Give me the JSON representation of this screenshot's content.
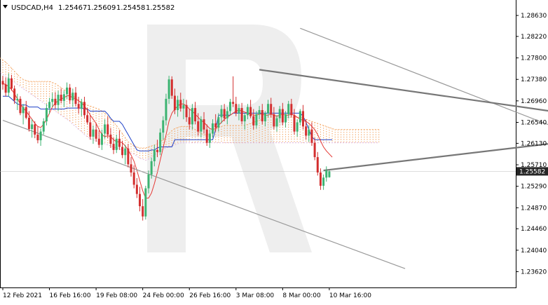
{
  "header": {
    "symbol_timeframe": "USDCAD,H4",
    "open": "1.25467",
    "high": "1.25609",
    "low": "1.25458",
    "close": "1.25582"
  },
  "price_badge": "1.25582",
  "colors": {
    "bull": "#3cb371",
    "bear": "#d32f2f",
    "tenkan": "#e53935",
    "kijun": "#1e40c8",
    "cloud": "#f4a460",
    "cloud_alt": "#d8a8d8",
    "trend": "#999999",
    "triangle": "#777777",
    "arrow": "#5a6a78",
    "badge_bg": "#262626",
    "watermark": "#eeeeee"
  },
  "chart_data": {
    "type": "candlestick",
    "title": "USDCAD,H4",
    "y_ticks": [
      "1.28630",
      "1.28220",
      "1.27800",
      "1.27380",
      "1.26960",
      "1.26540",
      "1.26130",
      "1.25710",
      "1.25290",
      "1.24870",
      "1.24460",
      "1.24040",
      "1.23620"
    ],
    "ylim": [
      1.2338,
      1.2885
    ],
    "x_ticks": [
      "12 Feb 2021",
      "16 Feb 16:00",
      "19 Feb 08:00",
      "24 Feb 00:00",
      "26 Feb 16:00",
      "3 Mar 08:00",
      "8 Mar 00:00",
      "10 Mar 16:00"
    ],
    "x_tick_bars": [
      0,
      16,
      32,
      48,
      64,
      80,
      96,
      112
    ],
    "ohlc": [
      [
        1.2735,
        1.2745,
        1.2718,
        1.2728
      ],
      [
        1.2728,
        1.2742,
        1.2705,
        1.2712
      ],
      [
        1.2712,
        1.275,
        1.2704,
        1.274
      ],
      [
        1.274,
        1.2747,
        1.2716,
        1.272
      ],
      [
        1.272,
        1.2726,
        1.269,
        1.2697
      ],
      [
        1.2697,
        1.271,
        1.2678,
        1.27
      ],
      [
        1.27,
        1.2705,
        1.2668,
        1.2672
      ],
      [
        1.2672,
        1.269,
        1.265,
        1.2684
      ],
      [
        1.2684,
        1.2696,
        1.266,
        1.2663
      ],
      [
        1.2663,
        1.2676,
        1.2636,
        1.2641
      ],
      [
        1.2641,
        1.266,
        1.2624,
        1.265
      ],
      [
        1.265,
        1.2656,
        1.2623,
        1.263
      ],
      [
        1.263,
        1.2646,
        1.2613,
        1.2619
      ],
      [
        1.2619,
        1.2642,
        1.2608,
        1.2636
      ],
      [
        1.2636,
        1.2662,
        1.263,
        1.2656
      ],
      [
        1.2656,
        1.269,
        1.2648,
        1.2682
      ],
      [
        1.2682,
        1.2702,
        1.267,
        1.2694
      ],
      [
        1.2694,
        1.2712,
        1.2684,
        1.27
      ],
      [
        1.27,
        1.2713,
        1.2681,
        1.2688
      ],
      [
        1.2688,
        1.2716,
        1.2676,
        1.2708
      ],
      [
        1.2708,
        1.272,
        1.2691,
        1.2696
      ],
      [
        1.2696,
        1.2716,
        1.2684,
        1.2709
      ],
      [
        1.2709,
        1.2732,
        1.27,
        1.2722
      ],
      [
        1.2722,
        1.2729,
        1.269,
        1.2697
      ],
      [
        1.2697,
        1.272,
        1.2684,
        1.2712
      ],
      [
        1.2712,
        1.2723,
        1.2685,
        1.269
      ],
      [
        1.269,
        1.2704,
        1.2671,
        1.2681
      ],
      [
        1.2681,
        1.27,
        1.2666,
        1.2694
      ],
      [
        1.2694,
        1.2704,
        1.2662,
        1.2668
      ],
      [
        1.2668,
        1.2682,
        1.265,
        1.2654
      ],
      [
        1.2654,
        1.2668,
        1.262,
        1.2626
      ],
      [
        1.2626,
        1.2648,
        1.2612,
        1.264
      ],
      [
        1.264,
        1.2652,
        1.2616,
        1.2622
      ],
      [
        1.2622,
        1.2638,
        1.2604,
        1.261
      ],
      [
        1.261,
        1.264,
        1.26,
        1.2632
      ],
      [
        1.2632,
        1.266,
        1.2622,
        1.265
      ],
      [
        1.265,
        1.2665,
        1.2623,
        1.263
      ],
      [
        1.263,
        1.2643,
        1.2604,
        1.2612
      ],
      [
        1.2612,
        1.2624,
        1.2592,
        1.26
      ],
      [
        1.26,
        1.263,
        1.2594,
        1.2622
      ],
      [
        1.2622,
        1.2638,
        1.26,
        1.2606
      ],
      [
        1.2606,
        1.2618,
        1.2584,
        1.259
      ],
      [
        1.259,
        1.261,
        1.2572,
        1.2603
      ],
      [
        1.2603,
        1.2612,
        1.2566,
        1.2572
      ],
      [
        1.2572,
        1.2586,
        1.2548,
        1.2556
      ],
      [
        1.2556,
        1.257,
        1.2525,
        1.2532
      ],
      [
        1.2532,
        1.2545,
        1.2506,
        1.2514
      ],
      [
        1.2514,
        1.2528,
        1.248,
        1.249
      ],
      [
        1.249,
        1.2504,
        1.2462,
        1.247
      ],
      [
        1.247,
        1.253,
        1.2464,
        1.2525
      ],
      [
        1.2525,
        1.256,
        1.2515,
        1.2552
      ],
      [
        1.2552,
        1.2585,
        1.2544,
        1.2578
      ],
      [
        1.2578,
        1.261,
        1.2568,
        1.26
      ],
      [
        1.26,
        1.262,
        1.2586,
        1.2596
      ],
      [
        1.2596,
        1.2642,
        1.259,
        1.2634
      ],
      [
        1.2634,
        1.2666,
        1.262,
        1.2658
      ],
      [
        1.2658,
        1.271,
        1.2648,
        1.27
      ],
      [
        1.27,
        1.2745,
        1.269,
        1.2738
      ],
      [
        1.2738,
        1.2744,
        1.27,
        1.2706
      ],
      [
        1.2706,
        1.272,
        1.267,
        1.2678
      ],
      [
        1.2678,
        1.2706,
        1.2665,
        1.2698
      ],
      [
        1.2698,
        1.2712,
        1.2675,
        1.2681
      ],
      [
        1.2681,
        1.27,
        1.266,
        1.2688
      ],
      [
        1.2688,
        1.2698,
        1.2655,
        1.2664
      ],
      [
        1.2664,
        1.268,
        1.264,
        1.265
      ],
      [
        1.265,
        1.269,
        1.264,
        1.2682
      ],
      [
        1.2682,
        1.2694,
        1.265,
        1.2656
      ],
      [
        1.2656,
        1.2672,
        1.2628,
        1.2636
      ],
      [
        1.2636,
        1.2666,
        1.2624,
        1.266
      ],
      [
        1.266,
        1.2674,
        1.2632,
        1.264
      ],
      [
        1.264,
        1.265,
        1.2608,
        1.2614
      ],
      [
        1.2614,
        1.264,
        1.2604,
        1.2632
      ],
      [
        1.2632,
        1.266,
        1.2624,
        1.2652
      ],
      [
        1.2652,
        1.267,
        1.2636,
        1.2644
      ],
      [
        1.2644,
        1.2672,
        1.2636,
        1.2664
      ],
      [
        1.2664,
        1.2688,
        1.2652,
        1.268
      ],
      [
        1.268,
        1.269,
        1.2656,
        1.2662
      ],
      [
        1.2662,
        1.2684,
        1.265,
        1.2676
      ],
      [
        1.2676,
        1.27,
        1.2668,
        1.2694
      ],
      [
        1.2694,
        1.2744,
        1.2684,
        1.269
      ],
      [
        1.269,
        1.2704,
        1.2666,
        1.2672
      ],
      [
        1.2672,
        1.269,
        1.2658,
        1.2682
      ],
      [
        1.2682,
        1.2692,
        1.265,
        1.2656
      ],
      [
        1.2656,
        1.2672,
        1.264,
        1.2668
      ],
      [
        1.2668,
        1.269,
        1.266,
        1.2684
      ],
      [
        1.2684,
        1.2698,
        1.2662,
        1.2666
      ],
      [
        1.2666,
        1.268,
        1.264,
        1.2648
      ],
      [
        1.2648,
        1.2676,
        1.2642,
        1.267
      ],
      [
        1.267,
        1.2686,
        1.266,
        1.2678
      ],
      [
        1.2678,
        1.269,
        1.265,
        1.2656
      ],
      [
        1.2656,
        1.2676,
        1.2646,
        1.2672
      ],
      [
        1.2672,
        1.2698,
        1.2664,
        1.269
      ],
      [
        1.269,
        1.2702,
        1.2664,
        1.267
      ],
      [
        1.267,
        1.2684,
        1.264,
        1.2646
      ],
      [
        1.2646,
        1.2668,
        1.2636,
        1.2662
      ],
      [
        1.2662,
        1.2686,
        1.2654,
        1.268
      ],
      [
        1.268,
        1.2692,
        1.2648,
        1.2654
      ],
      [
        1.2654,
        1.2676,
        1.2644,
        1.267
      ],
      [
        1.267,
        1.2696,
        1.2662,
        1.269
      ],
      [
        1.269,
        1.27,
        1.2664,
        1.2668
      ],
      [
        1.2668,
        1.268,
        1.263,
        1.2636
      ],
      [
        1.2636,
        1.266,
        1.2626,
        1.2654
      ],
      [
        1.2654,
        1.268,
        1.2648,
        1.2676
      ],
      [
        1.2676,
        1.2688,
        1.264,
        1.2646
      ],
      [
        1.2646,
        1.266,
        1.262,
        1.2628
      ],
      [
        1.2628,
        1.2648,
        1.2616,
        1.264
      ],
      [
        1.264,
        1.2654,
        1.2608,
        1.2614
      ],
      [
        1.2614,
        1.2624,
        1.258,
        1.2586
      ],
      [
        1.2586,
        1.2596,
        1.255,
        1.2556
      ],
      [
        1.2556,
        1.2564,
        1.2522,
        1.253
      ],
      [
        1.253,
        1.2552,
        1.2522,
        1.2546
      ],
      [
        1.2546,
        1.2568,
        1.2538,
        1.256
      ],
      [
        1.25467,
        1.25609,
        1.25458,
        1.25582
      ]
    ],
    "tenkan": [
      1.273,
      1.2728,
      1.2724,
      1.2718,
      1.271,
      1.27,
      1.269,
      1.2682,
      1.2676,
      1.2668,
      1.266,
      1.2652,
      1.2646,
      1.2644,
      1.265,
      1.266,
      1.2672,
      1.2684,
      1.2692,
      1.2696,
      1.27,
      1.2702,
      1.2706,
      1.2706,
      1.2702,
      1.27,
      1.2696,
      1.2692,
      1.2686,
      1.2678,
      1.2668,
      1.266,
      1.2652,
      1.264,
      1.263,
      1.2626,
      1.2628,
      1.2626,
      1.262,
      1.2616,
      1.2616,
      1.2614,
      1.2608,
      1.26,
      1.259,
      1.2578,
      1.256,
      1.254,
      1.252,
      1.2506,
      1.2506,
      1.2516,
      1.2534,
      1.2556,
      1.258,
      1.2604,
      1.263,
      1.2656,
      1.2672,
      1.268,
      1.2686,
      1.269,
      1.269,
      1.2686,
      1.268,
      1.2676,
      1.267,
      1.2664,
      1.2658,
      1.2654,
      1.2648,
      1.2642,
      1.264,
      1.2642,
      1.2648,
      1.2654,
      1.266,
      1.2664,
      1.2668,
      1.2672,
      1.2676,
      1.2678,
      1.2676,
      1.2674,
      1.2672,
      1.267,
      1.2668,
      1.2668,
      1.267,
      1.267,
      1.2668,
      1.2668,
      1.267,
      1.2668,
      1.2666,
      1.2668,
      1.267,
      1.2668,
      1.2668,
      1.267,
      1.2668,
      1.2664,
      1.266,
      1.2658,
      1.2656,
      1.2652,
      1.2646,
      1.264,
      1.263,
      1.2618,
      1.2606,
      1.2598,
      1.2592,
      1.2586
    ],
    "kijun": [
      1.2705,
      1.2705,
      1.2705,
      1.27,
      1.2695,
      1.269,
      1.2688,
      1.2688,
      1.2688,
      1.2684,
      1.2684,
      1.2684,
      1.2684,
      1.268,
      1.268,
      1.268,
      1.268,
      1.268,
      1.268,
      1.268,
      1.268,
      1.268,
      1.2682,
      1.2682,
      1.2682,
      1.2682,
      1.2682,
      1.2682,
      1.268,
      1.268,
      1.2676,
      1.2676,
      1.2676,
      1.2676,
      1.2676,
      1.2676,
      1.267,
      1.2662,
      1.2656,
      1.2656,
      1.2656,
      1.265,
      1.264,
      1.263,
      1.262,
      1.261,
      1.26,
      1.2598,
      1.2598,
      1.2598,
      1.2598,
      1.26,
      1.26,
      1.2604,
      1.2606,
      1.2606,
      1.2606,
      1.2606,
      1.2606,
      1.262,
      1.262,
      1.262,
      1.262,
      1.262,
      1.262,
      1.262,
      1.262,
      1.262,
      1.262,
      1.262,
      1.262,
      1.262,
      1.262,
      1.264,
      1.2668,
      1.2668,
      1.2668,
      1.2668,
      1.2668,
      1.2672,
      1.2672,
      1.2672,
      1.2672,
      1.2672,
      1.2672,
      1.2672,
      1.2672,
      1.2672,
      1.2672,
      1.2672,
      1.2672,
      1.2672,
      1.2672,
      1.2672,
      1.2672,
      1.2672,
      1.2672,
      1.2672,
      1.2672,
      1.2672,
      1.2672,
      1.2672,
      1.2672,
      1.2666,
      1.2654,
      1.264,
      1.2626,
      1.262,
      1.262,
      1.262,
      1.262,
      1.262,
      1.262,
      1.262
    ],
    "cloud_a": [
      1.2798,
      1.2796,
      1.2794,
      1.2792,
      1.279,
      1.2788,
      1.2784,
      1.278,
      1.2776,
      1.2772,
      1.2766,
      1.276,
      1.2754,
      1.2748,
      1.2742,
      1.2738,
      1.2736,
      1.2734,
      1.2734,
      1.2734,
      1.2734,
      1.2734,
      1.2734,
      1.2734,
      1.2734,
      1.2732,
      1.273,
      1.2726,
      1.2722,
      1.2718,
      1.2714,
      1.271,
      1.2706,
      1.2702,
      1.2698,
      1.2694,
      1.269,
      1.2688,
      1.2686,
      1.2684,
      1.2682,
      1.268,
      1.2676,
      1.2672,
      1.2666,
      1.266,
      1.2654,
      1.2648,
      1.264,
      1.2632,
      1.2624,
      1.2616,
      1.2612,
      1.2608,
      1.2606,
      1.2604,
      1.2604,
      1.2604,
      1.2606,
      1.2608,
      1.261,
      1.2612,
      1.2616,
      1.262,
      1.2626,
      1.2632,
      1.2638,
      1.2642,
      1.2644,
      1.2646,
      1.2646,
      1.2646,
      1.2646,
      1.2644,
      1.264,
      1.2636,
      1.2632,
      1.263,
      1.263,
      1.2632,
      1.2636,
      1.264,
      1.2644,
      1.2646,
      1.2648,
      1.2648,
      1.2648,
      1.2648,
      1.2648,
      1.2648,
      1.2648,
      1.2648,
      1.265,
      1.2652,
      1.2654,
      1.2656,
      1.2658,
      1.266,
      1.2662,
      1.2664,
      1.2664,
      1.2664,
      1.2664,
      1.2664,
      1.2664,
      1.2664,
      1.2664,
      1.2664,
      1.2664,
      1.2664,
      1.2664,
      1.2662,
      1.266,
      1.2658,
      1.2656,
      1.2654,
      1.2652,
      1.265,
      1.2648,
      1.2646,
      1.2644,
      1.2642,
      1.264,
      1.264,
      1.264,
      1.264,
      1.264,
      1.264,
      1.264,
      1.264,
      1.264,
      1.264,
      1.264,
      1.264,
      1.264,
      1.264,
      1.264,
      1.264
    ],
    "cloud_b": [
      1.2778,
      1.2776,
      1.2772,
      1.2768,
      1.2764,
      1.276,
      1.2756,
      1.2752,
      1.2748,
      1.2744,
      1.274,
      1.2736,
      1.2732,
      1.2728,
      1.2724,
      1.272,
      1.2716,
      1.2712,
      1.2708,
      1.2704,
      1.27,
      1.2696,
      1.2692,
      1.2688,
      1.2684,
      1.268,
      1.2676,
      1.2672,
      1.2668,
      1.2664,
      1.266,
      1.2656,
      1.265,
      1.2646,
      1.264,
      1.2636,
      1.263,
      1.2626,
      1.2622,
      1.262,
      1.2618,
      1.2616,
      1.2614,
      1.2612,
      1.261,
      1.2608,
      1.2606,
      1.2604,
      1.2602,
      1.26,
      1.2598,
      1.2596,
      1.2594,
      1.2592,
      1.2588,
      1.2584,
      1.2582,
      1.258,
      1.2582,
      1.2586,
      1.259,
      1.2594,
      1.2598,
      1.2602,
      1.2604,
      1.2606,
      1.2608,
      1.261,
      1.2612,
      1.2614,
      1.2614,
      1.2614,
      1.2614,
      1.2614,
      1.2614,
      1.2614,
      1.2614,
      1.2614,
      1.2614,
      1.2614,
      1.2614,
      1.2614,
      1.2614,
      1.2614,
      1.2614,
      1.2614,
      1.2614,
      1.2614,
      1.2614,
      1.2614,
      1.2614,
      1.2614,
      1.2614,
      1.2614,
      1.2614,
      1.2614,
      1.2614,
      1.2614,
      1.2614,
      1.2614,
      1.2614,
      1.2614,
      1.2614,
      1.2614,
      1.2614,
      1.2614,
      1.2614,
      1.2614,
      1.2614,
      1.2614,
      1.2614,
      1.2614,
      1.2614,
      1.2614,
      1.2614,
      1.2614,
      1.2614,
      1.2614,
      1.2614,
      1.2614,
      1.2614,
      1.2614,
      1.2614,
      1.2614,
      1.2614,
      1.2614,
      1.2614,
      1.2614,
      1.2614,
      1.2614,
      1.2614,
      1.2614,
      1.2614,
      1.2614,
      1.2614,
      1.2614,
      1.2614,
      1.2614
    ],
    "lines": [
      {
        "name": "channel-lower",
        "from": [
          0,
          1.2658
        ],
        "to": [
          138,
          1.2368
        ],
        "kind": "trend"
      },
      {
        "name": "channel-upper",
        "from": [
          102,
          1.2838
        ],
        "to": [
          265,
          1.2477
        ],
        "kind": "trend"
      },
      {
        "name": "triangle-upper",
        "from": [
          88,
          1.2757
        ],
        "to": [
          226,
          1.2645
        ],
        "kind": "triangle"
      },
      {
        "name": "triangle-lower",
        "from": [
          110,
          1.256
        ],
        "to": [
          226,
          1.2638
        ],
        "kind": "triangle"
      }
    ],
    "arrows": [
      {
        "name": "arrow-up",
        "from": [
          188,
          1.2563
        ],
        "to": [
          198,
          1.2613
        ]
      },
      {
        "name": "arrow-down",
        "from": [
          198,
          1.261
        ],
        "to": [
          214,
          1.241
        ]
      }
    ],
    "grid": false
  }
}
